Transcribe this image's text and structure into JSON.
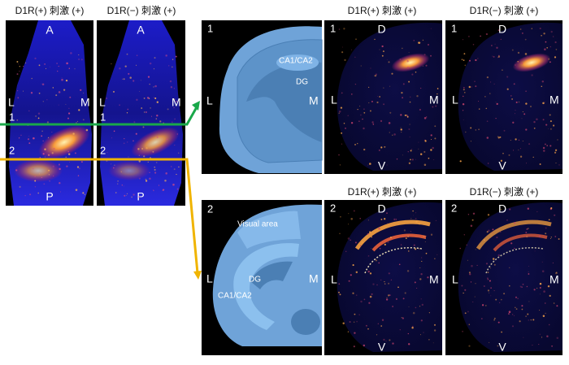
{
  "left": {
    "headers": [
      "D1R(+) 刺激 (+)",
      "D1R(−) 刺激 (+)"
    ],
    "panels": [
      {
        "top": "A",
        "left": "L",
        "right": "M",
        "line1": "1",
        "line2": "2",
        "bottom": "P"
      },
      {
        "top": "A",
        "left": "L",
        "right": "M",
        "line1": "1",
        "line2": "2",
        "bottom": "P"
      }
    ]
  },
  "rows": [
    {
      "headers": [
        "D1R(+) 刺激 (+)",
        "D1R(−) 刺激 (+)"
      ],
      "diagram": {
        "number": "1",
        "left": "L",
        "right": "M",
        "regions": [
          "CA1/CA2",
          "DG"
        ]
      },
      "images": [
        {
          "number": "1",
          "top": "D",
          "left": "L",
          "right": "M",
          "bottom": "V"
        },
        {
          "number": "1",
          "top": "D",
          "left": "L",
          "right": "M",
          "bottom": "V"
        }
      ]
    },
    {
      "headers": [
        "D1R(+) 刺激 (+)",
        "D1R(−) 刺激 (+)"
      ],
      "diagram": {
        "number": "2",
        "left": "L",
        "right": "M",
        "regions": [
          "Visual area",
          "DG",
          "CA1/CA2"
        ]
      },
      "images": [
        {
          "number": "2",
          "top": "D",
          "left": "L",
          "right": "M",
          "bottom": "V"
        },
        {
          "number": "2",
          "top": "D",
          "left": "L",
          "right": "M",
          "bottom": "V"
        }
      ]
    }
  ]
}
